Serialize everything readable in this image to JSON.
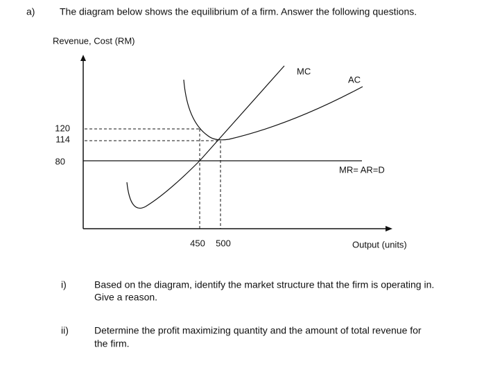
{
  "question": {
    "label": "a)",
    "text": "The diagram below shows the equilibrium of a firm. Answer the following questions."
  },
  "diagram": {
    "y_axis_label": "Revenue, Cost (RM)",
    "x_axis_label": "Output (units)",
    "y_ticks": [
      "120",
      "114",
      "80"
    ],
    "x_ticks": [
      "450",
      "500"
    ],
    "curves": {
      "mc": "MC",
      "ac": "AC",
      "mr": "MR= AR=D"
    }
  },
  "parts": [
    {
      "label": "i)",
      "lines": [
        "Based on the diagram, identify the market structure that the firm is operating in.",
        "Give a reason."
      ]
    },
    {
      "label": "ii)",
      "lines": [
        "Determine the profit maximizing quantity and the amount of total revenue for",
        "the firm."
      ]
    }
  ]
}
